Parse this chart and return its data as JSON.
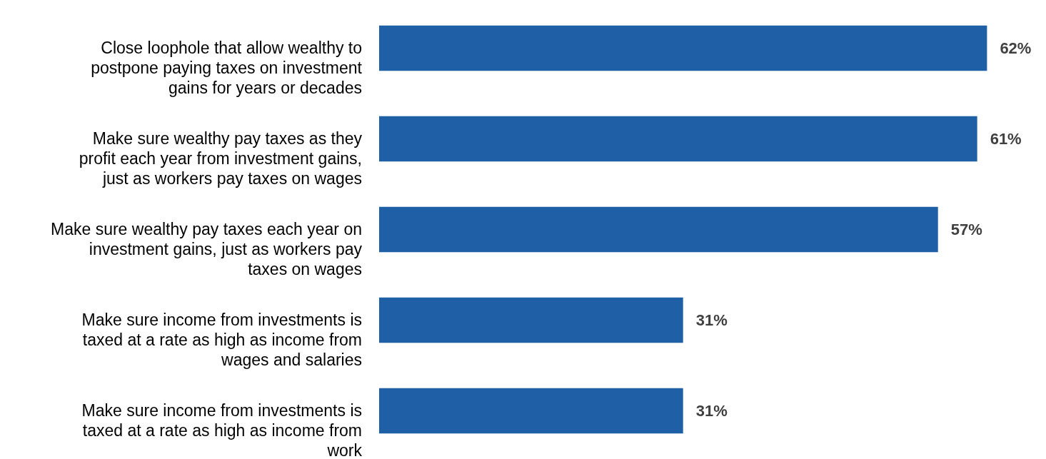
{
  "chart_data": {
    "type": "bar",
    "orientation": "horizontal",
    "categories": [
      "Close loophole that allow wealthy to postpone paying taxes on investment gains for years or decades",
      "Make sure wealthy pay taxes as they profit each year from investment gains, just as workers pay taxes on wages",
      "Make sure wealthy pay taxes each year on investment gains, just as workers pay taxes on wages",
      "Make sure income from investments is taxed at a rate as high as income from wages and salaries",
      "Make sure income from investments is taxed at a rate as high as income from work"
    ],
    "values": [
      62,
      61,
      57,
      31,
      31
    ],
    "value_labels": [
      "62%",
      "61%",
      "57%",
      "31%",
      "31%"
    ],
    "color": "#1f5fa6"
  }
}
